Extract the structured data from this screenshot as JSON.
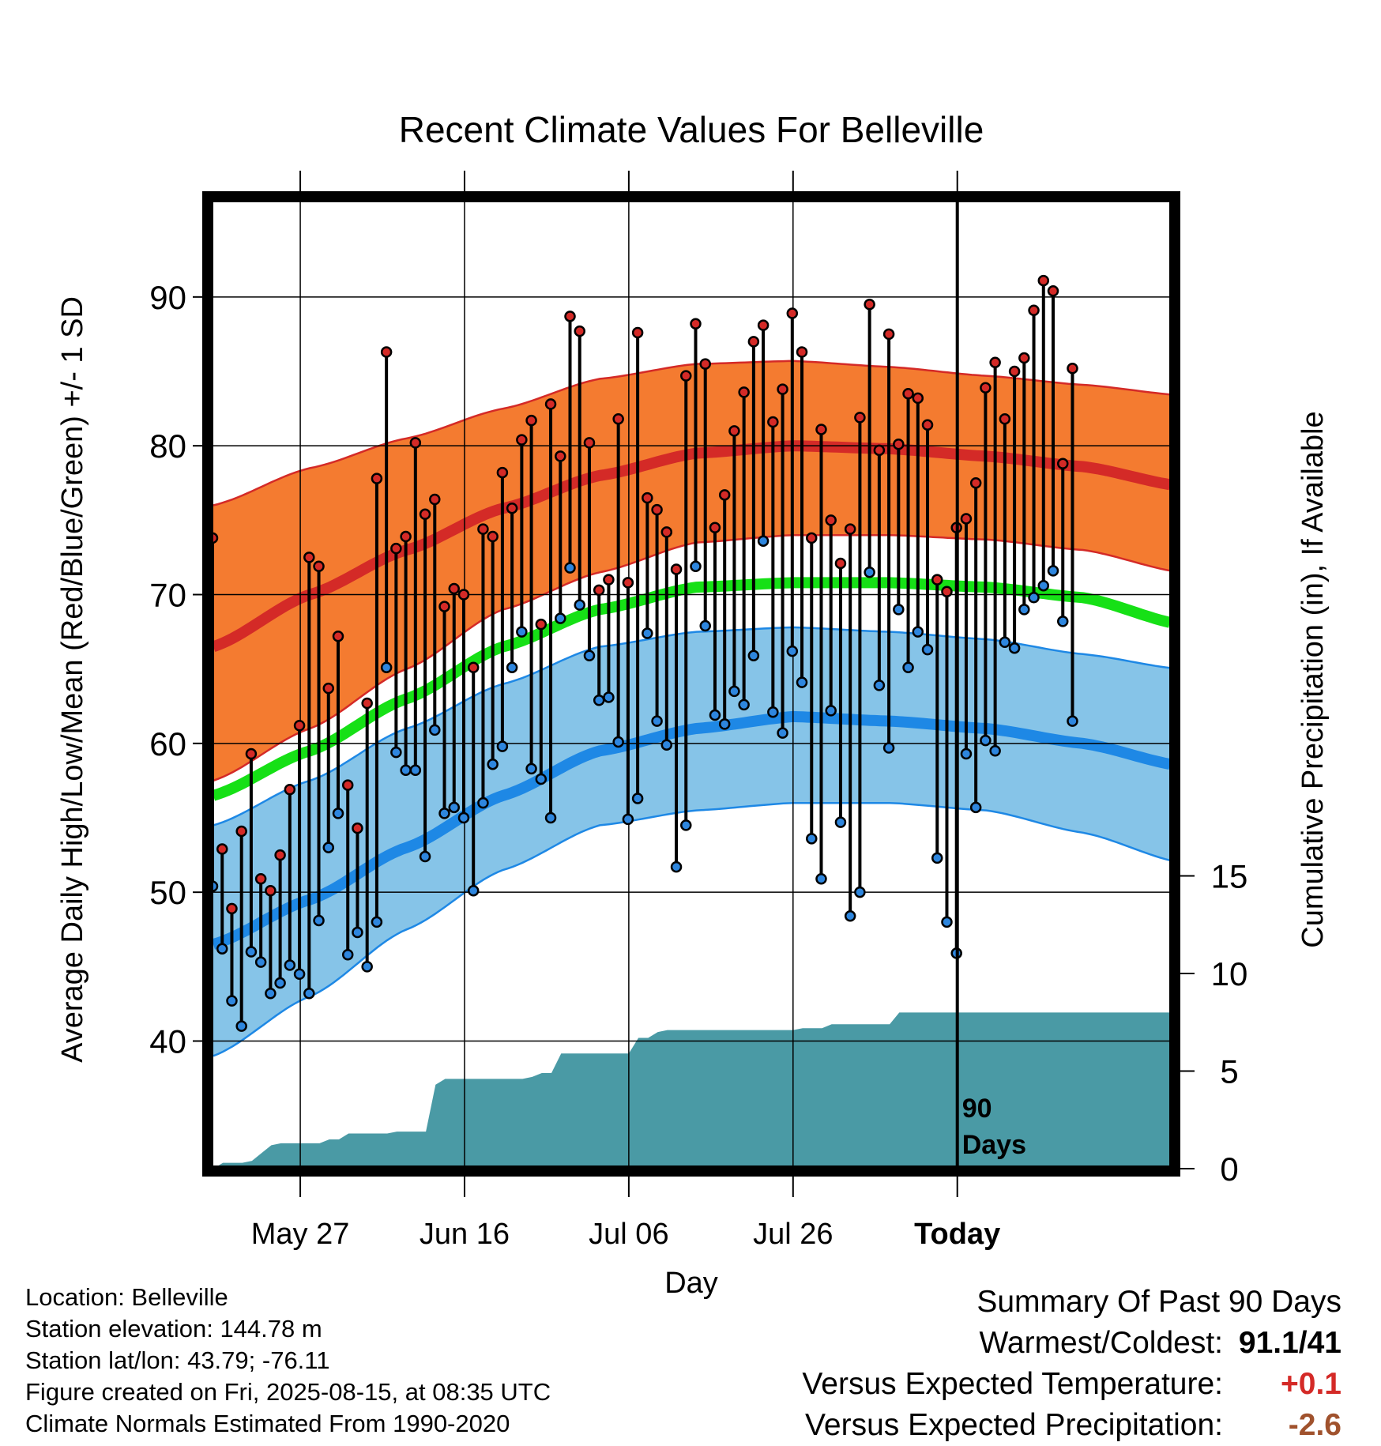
{
  "chart_data": {
    "type": "line",
    "title": "Recent Climate Values For Belleville",
    "xlabel": "Day",
    "ylabel_left": "Average Daily High/Low/Mean (Red/Blue/Green) +/- 1 SD",
    "ylabel_right": "Cumulative Precipitation (in), If Available",
    "x_tick_labels": [
      "May 27",
      "Jun 16",
      "Jul 06",
      "Jul 26",
      "Today"
    ],
    "y_ticks_left": [
      "40",
      "50",
      "60",
      "70",
      "80",
      "90"
    ],
    "y_ticks_right": [
      "0",
      "5",
      "10",
      "15"
    ],
    "ylim_left": [
      31,
      97
    ],
    "ylim_precip": [
      0,
      20
    ],
    "today_annotation": [
      "90",
      "Days"
    ],
    "colors": {
      "high_band": "#F47B30",
      "high_mean": "#D42A27",
      "low_band": "#86C4E8",
      "low_mean": "#1E88E5",
      "mean_line": "#16E016",
      "precip": "#4A9AA5",
      "high_dot": "#D42A27",
      "low_dot": "#2E86DE"
    },
    "normals": {
      "day_index": [
        0,
        10,
        20,
        30,
        40,
        50,
        60,
        70,
        80,
        90,
        100
      ],
      "high_mean": [
        66.5,
        70.0,
        73.0,
        75.8,
        78.0,
        79.5,
        80.0,
        79.8,
        79.3,
        78.6,
        77.3
      ],
      "high_upper": [
        76.0,
        78.5,
        80.5,
        82.5,
        84.5,
        85.5,
        85.7,
        85.3,
        84.7,
        84.1,
        83.4
      ],
      "high_lower": [
        57.5,
        61.0,
        65.0,
        69.0,
        71.5,
        73.5,
        74.0,
        74.0,
        73.7,
        73.0,
        71.5
      ],
      "mean": [
        56.5,
        59.5,
        63.0,
        66.5,
        69.0,
        70.5,
        70.8,
        70.8,
        70.5,
        69.8,
        68.0
      ],
      "low_mean": [
        46.5,
        49.5,
        53.0,
        56.5,
        59.5,
        61.0,
        61.8,
        61.5,
        61.0,
        60.0,
        58.5
      ],
      "low_upper": [
        54.5,
        57.5,
        61.0,
        64.0,
        66.5,
        67.5,
        67.8,
        67.5,
        67.0,
        66.0,
        65.0
      ],
      "low_lower": [
        39.0,
        43.0,
        47.5,
        51.5,
        54.5,
        55.5,
        56.0,
        56.0,
        55.5,
        54.0,
        52.0
      ]
    },
    "daily_highs": [
      73.8,
      52.9,
      48.9,
      54.1,
      59.3,
      50.9,
      50.1,
      52.5,
      56.9,
      61.2,
      72.5,
      71.9,
      63.7,
      67.2,
      57.2,
      54.3,
      62.7,
      77.8,
      86.3,
      73.1,
      73.9,
      80.2,
      75.4,
      76.4,
      69.2,
      70.4,
      70.0,
      65.1,
      74.4,
      73.9,
      78.2,
      75.8,
      80.4,
      81.7,
      68.0,
      82.8,
      79.3,
      88.7,
      87.7,
      80.2,
      70.3,
      71.0,
      81.8,
      70.8,
      87.6,
      76.5,
      75.7,
      74.2,
      71.7,
      84.7,
      88.2,
      85.5,
      74.5,
      76.7,
      81.0,
      83.6,
      87.0,
      88.1,
      81.6,
      83.8,
      88.9,
      86.3,
      73.8,
      81.1,
      75.0,
      72.1,
      74.4,
      81.9,
      89.5,
      79.7,
      87.5,
      80.1,
      83.5,
      83.2,
      81.4,
      71.0,
      70.2,
      74.5,
      75.1,
      77.5,
      83.9,
      85.6,
      81.8,
      85.0,
      85.9,
      89.1,
      91.1,
      90.4,
      78.8,
      85.2
    ],
    "daily_lows": [
      50.4,
      46.2,
      42.7,
      41.0,
      46.0,
      45.3,
      43.2,
      43.9,
      45.1,
      44.5,
      43.2,
      48.1,
      53.0,
      55.3,
      45.8,
      47.3,
      45.0,
      48.0,
      65.1,
      59.4,
      58.2,
      58.2,
      52.4,
      60.9,
      55.3,
      55.7,
      55.0,
      50.1,
      56.0,
      58.6,
      59.8,
      65.1,
      67.5,
      58.3,
      57.6,
      55.0,
      68.4,
      71.8,
      69.3,
      65.9,
      62.9,
      63.1,
      60.1,
      54.9,
      56.3,
      67.4,
      61.5,
      59.9,
      51.7,
      54.5,
      71.9,
      67.9,
      61.9,
      61.3,
      63.5,
      62.6,
      65.9,
      73.6,
      62.1,
      60.7,
      66.2,
      64.1,
      53.6,
      50.9,
      62.2,
      54.7,
      48.4,
      50.0,
      71.5,
      63.9,
      59.7,
      69.0,
      65.1,
      67.5,
      66.3,
      52.3,
      48.0,
      45.9,
      59.3,
      55.7,
      60.2,
      59.5,
      66.8,
      66.4,
      69.0,
      69.8,
      70.6,
      71.6,
      68.2,
      61.5
    ],
    "cumulative_precip": [
      [
        0,
        0.0
      ],
      [
        1,
        0.3
      ],
      [
        3,
        0.3
      ],
      [
        4,
        0.4
      ],
      [
        5,
        0.8
      ],
      [
        6,
        1.2
      ],
      [
        7,
        1.3
      ],
      [
        11,
        1.3
      ],
      [
        12,
        1.5
      ],
      [
        13,
        1.5
      ],
      [
        14,
        1.8
      ],
      [
        18,
        1.8
      ],
      [
        19,
        1.9
      ],
      [
        22,
        1.9
      ],
      [
        23,
        4.3
      ],
      [
        24,
        4.6
      ],
      [
        32,
        4.6
      ],
      [
        33,
        4.7
      ],
      [
        34,
        4.9
      ],
      [
        35,
        4.9
      ],
      [
        36,
        5.9
      ],
      [
        43,
        5.9
      ],
      [
        44,
        6.7
      ],
      [
        45,
        6.7
      ],
      [
        46,
        7.0
      ],
      [
        47,
        7.1
      ],
      [
        60,
        7.1
      ],
      [
        61,
        7.2
      ],
      [
        63,
        7.2
      ],
      [
        64,
        7.4
      ],
      [
        70,
        7.4
      ],
      [
        71,
        8.0
      ],
      [
        90,
        8.0
      ],
      [
        99,
        8.0
      ]
    ]
  },
  "info": [
    "Location: Belleville",
    "Station elevation: 144.78 m",
    "Station lat/lon: 43.79; -76.11",
    "Figure created on Fri, 2025-08-15, at 08:35 UTC",
    "Climate Normals Estimated From 1990-2020"
  ],
  "summary": {
    "heading": "Summary Of Past 90 Days",
    "rows": [
      {
        "label": "Warmest/Coldest:",
        "value": "91.1/41",
        "color": "#000000"
      },
      {
        "label": "Versus Expected Temperature:",
        "value": "+0.1",
        "color": "#D42A27"
      },
      {
        "label": "Versus Expected Precipitation:",
        "value": "-2.6",
        "color": "#A0522D"
      }
    ]
  }
}
